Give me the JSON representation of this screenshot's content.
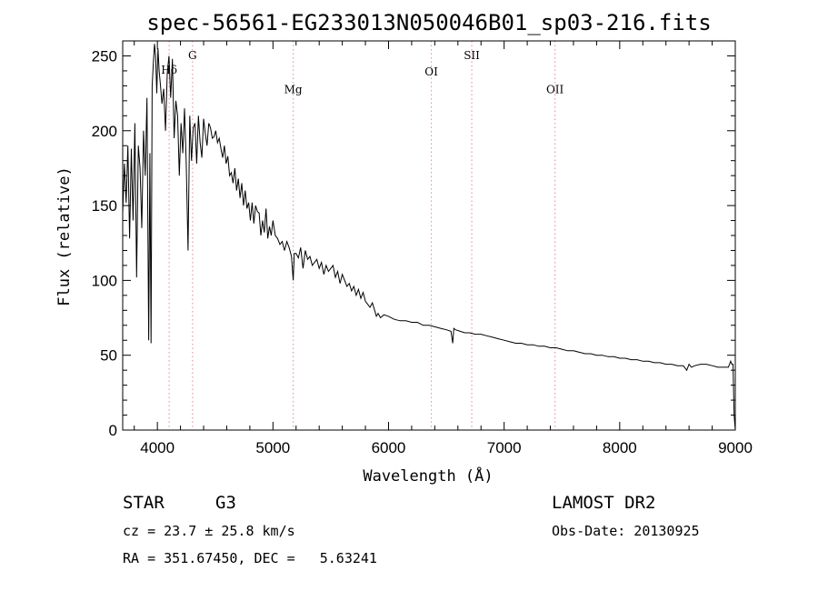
{
  "chart_data": {
    "type": "line",
    "title": "spec-56561-EG233013N050046B01_sp03-216.fits",
    "xlabel": "Wavelength (Å)",
    "ylabel": "Flux (relative)",
    "xlim": [
      3700,
      9000
    ],
    "ylim": [
      0,
      260
    ],
    "xticks": [
      4000,
      5000,
      6000,
      7000,
      8000,
      9000
    ],
    "yticks": [
      0,
      50,
      100,
      150,
      200,
      250
    ],
    "grid": false,
    "line_color": "#000000",
    "marker_color": "#e0a0a0",
    "series": [
      {
        "x": [
          3700,
          3715,
          3730,
          3745,
          3760,
          3775,
          3790,
          3805,
          3820,
          3835,
          3850,
          3865,
          3880,
          3895,
          3910,
          3925,
          3935,
          3945,
          3955,
          3965,
          3975,
          3985,
          3995,
          4005,
          4015,
          4025,
          4040,
          4055,
          4070,
          4085,
          4100,
          4115,
          4130,
          4145,
          4160,
          4175,
          4190,
          4205,
          4220,
          4235,
          4250,
          4265,
          4280,
          4295,
          4310,
          4325,
          4340,
          4355,
          4370,
          4385,
          4400,
          4415,
          4430,
          4445,
          4460,
          4475,
          4490,
          4505,
          4520,
          4535,
          4550,
          4565,
          4580,
          4595,
          4610,
          4625,
          4640,
          4655,
          4670,
          4685,
          4700,
          4715,
          4730,
          4745,
          4760,
          4775,
          4790,
          4805,
          4820,
          4835,
          4850,
          4865,
          4880,
          4895,
          4910,
          4925,
          4940,
          4955,
          4970,
          4985,
          5000,
          5020,
          5040,
          5060,
          5080,
          5100,
          5120,
          5140,
          5160,
          5175,
          5185,
          5200,
          5220,
          5240,
          5260,
          5280,
          5300,
          5320,
          5340,
          5360,
          5380,
          5400,
          5420,
          5440,
          5460,
          5480,
          5500,
          5520,
          5540,
          5560,
          5580,
          5600,
          5620,
          5640,
          5660,
          5680,
          5700,
          5720,
          5740,
          5760,
          5780,
          5800,
          5820,
          5840,
          5860,
          5880,
          5895,
          5910,
          5930,
          5960,
          6000,
          6050,
          6100,
          6150,
          6200,
          6250,
          6300,
          6350,
          6400,
          6450,
          6500,
          6540,
          6555,
          6565,
          6580,
          6620,
          6660,
          6700,
          6750,
          6800,
          6850,
          6900,
          6950,
          7000,
          7050,
          7100,
          7150,
          7200,
          7250,
          7300,
          7350,
          7400,
          7450,
          7500,
          7550,
          7600,
          7650,
          7700,
          7750,
          7800,
          7850,
          7900,
          7950,
          8000,
          8050,
          8100,
          8150,
          8200,
          8250,
          8300,
          8350,
          8400,
          8450,
          8500,
          8550,
          8580,
          8600,
          8620,
          8650,
          8700,
          8750,
          8800,
          8850,
          8900,
          8940,
          8960,
          8970,
          8980,
          8990,
          9000
        ],
        "y": [
          145,
          178,
          152,
          190,
          128,
          188,
          140,
          205,
          102,
          190,
          175,
          135,
          200,
          170,
          222,
          60,
          185,
          58,
          230,
          245,
          258,
          250,
          225,
          255,
          240,
          232,
          218,
          228,
          200,
          238,
          250,
          222,
          248,
          195,
          220,
          210,
          170,
          205,
          185,
          215,
          178,
          120,
          210,
          180,
          202,
          205,
          178,
          210,
          192,
          182,
          208,
          198,
          190,
          205,
          202,
          195,
          196,
          200,
          192,
          195,
          188,
          182,
          190,
          178,
          183,
          170,
          172,
          165,
          175,
          160,
          168,
          155,
          165,
          150,
          160,
          148,
          152,
          140,
          152,
          138,
          150,
          146,
          145,
          130,
          140,
          132,
          148,
          128,
          136,
          130,
          140,
          130,
          128,
          124,
          126,
          120,
          126,
          122,
          116,
          100,
          118,
          118,
          115,
          122,
          108,
          120,
          114,
          116,
          110,
          112,
          114,
          108,
          112,
          104,
          110,
          106,
          108,
          110,
          102,
          106,
          98,
          104,
          100,
          96,
          98,
          93,
          96,
          90,
          94,
          88,
          92,
          86,
          84,
          82,
          85,
          80,
          76,
          78,
          75,
          77,
          76,
          74,
          73,
          73,
          72,
          72,
          70,
          70,
          69,
          68,
          67,
          66,
          58,
          68,
          67,
          66,
          65,
          65,
          64,
          64,
          63,
          62,
          61,
          60,
          59,
          58,
          58,
          57,
          57,
          56,
          56,
          55,
          55,
          54,
          53,
          53,
          52,
          51,
          51,
          50,
          50,
          49,
          49,
          48,
          48,
          47,
          47,
          46,
          46,
          45,
          45,
          44,
          44,
          43,
          43,
          40,
          44,
          42,
          43,
          44,
          44,
          43,
          42,
          42,
          42,
          46,
          44,
          44,
          10,
          0
        ]
      }
    ],
    "line_markers": [
      {
        "label": "Hδ",
        "x": 4102,
        "label_y": 238
      },
      {
        "label": "G",
        "x": 4304,
        "label_y": 248
      },
      {
        "label": "Mg",
        "x": 5175,
        "label_y": 225
      },
      {
        "label": "OI",
        "x": 6370,
        "label_y": 237
      },
      {
        "label": "SII",
        "x": 6720,
        "label_y": 248
      },
      {
        "label": "OII",
        "x": 7440,
        "label_y": 225
      }
    ]
  },
  "info": {
    "class_label": "STAR",
    "subclass": "G3",
    "cz": "cz = 23.7 ± 25.8 km/s",
    "coords": "RA = 351.67450, DEC =   5.63241",
    "survey": "LAMOST DR2",
    "obs_date": "Obs-Date: 20130925"
  }
}
